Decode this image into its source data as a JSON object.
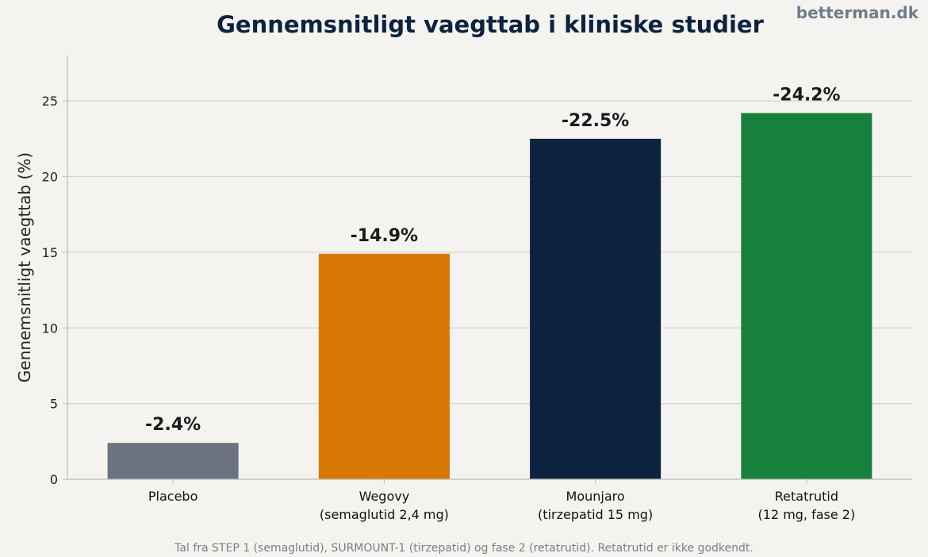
{
  "site": "betterman.dk",
  "footnote": "Tal fra STEP 1 (semaglutid), SURMOUNT-1 (tirzepatid) og fase 2 (retatrutid). Retatrutid er ikke godkendt.",
  "chart_data": {
    "type": "bar",
    "title": "Gennemsnitligt vaegttab i kliniske studier",
    "xlabel": "",
    "ylabel": "Gennemsnitligt vaegttab (%)",
    "ylim": [
      0,
      28
    ],
    "yticks": [
      0,
      5,
      10,
      15,
      20,
      25
    ],
    "grid": true,
    "categories": [
      [
        "Placebo"
      ],
      [
        "Wegovy",
        "(semaglutid 2,4 mg)"
      ],
      [
        "Mounjaro",
        "(tirzepatid 15 mg)"
      ],
      [
        "Retatrutid",
        "(12 mg, fase 2)"
      ]
    ],
    "values": [
      2.4,
      14.9,
      22.5,
      24.2
    ],
    "data_labels": [
      "-2.4%",
      "-14.9%",
      "-22.5%",
      "-24.2%"
    ],
    "colors": [
      "#6b7280",
      "#d97706",
      "#0c2340",
      "#16813d"
    ],
    "gridline_color": "#d6d3cf",
    "axis_color": "#bbbbbb"
  }
}
